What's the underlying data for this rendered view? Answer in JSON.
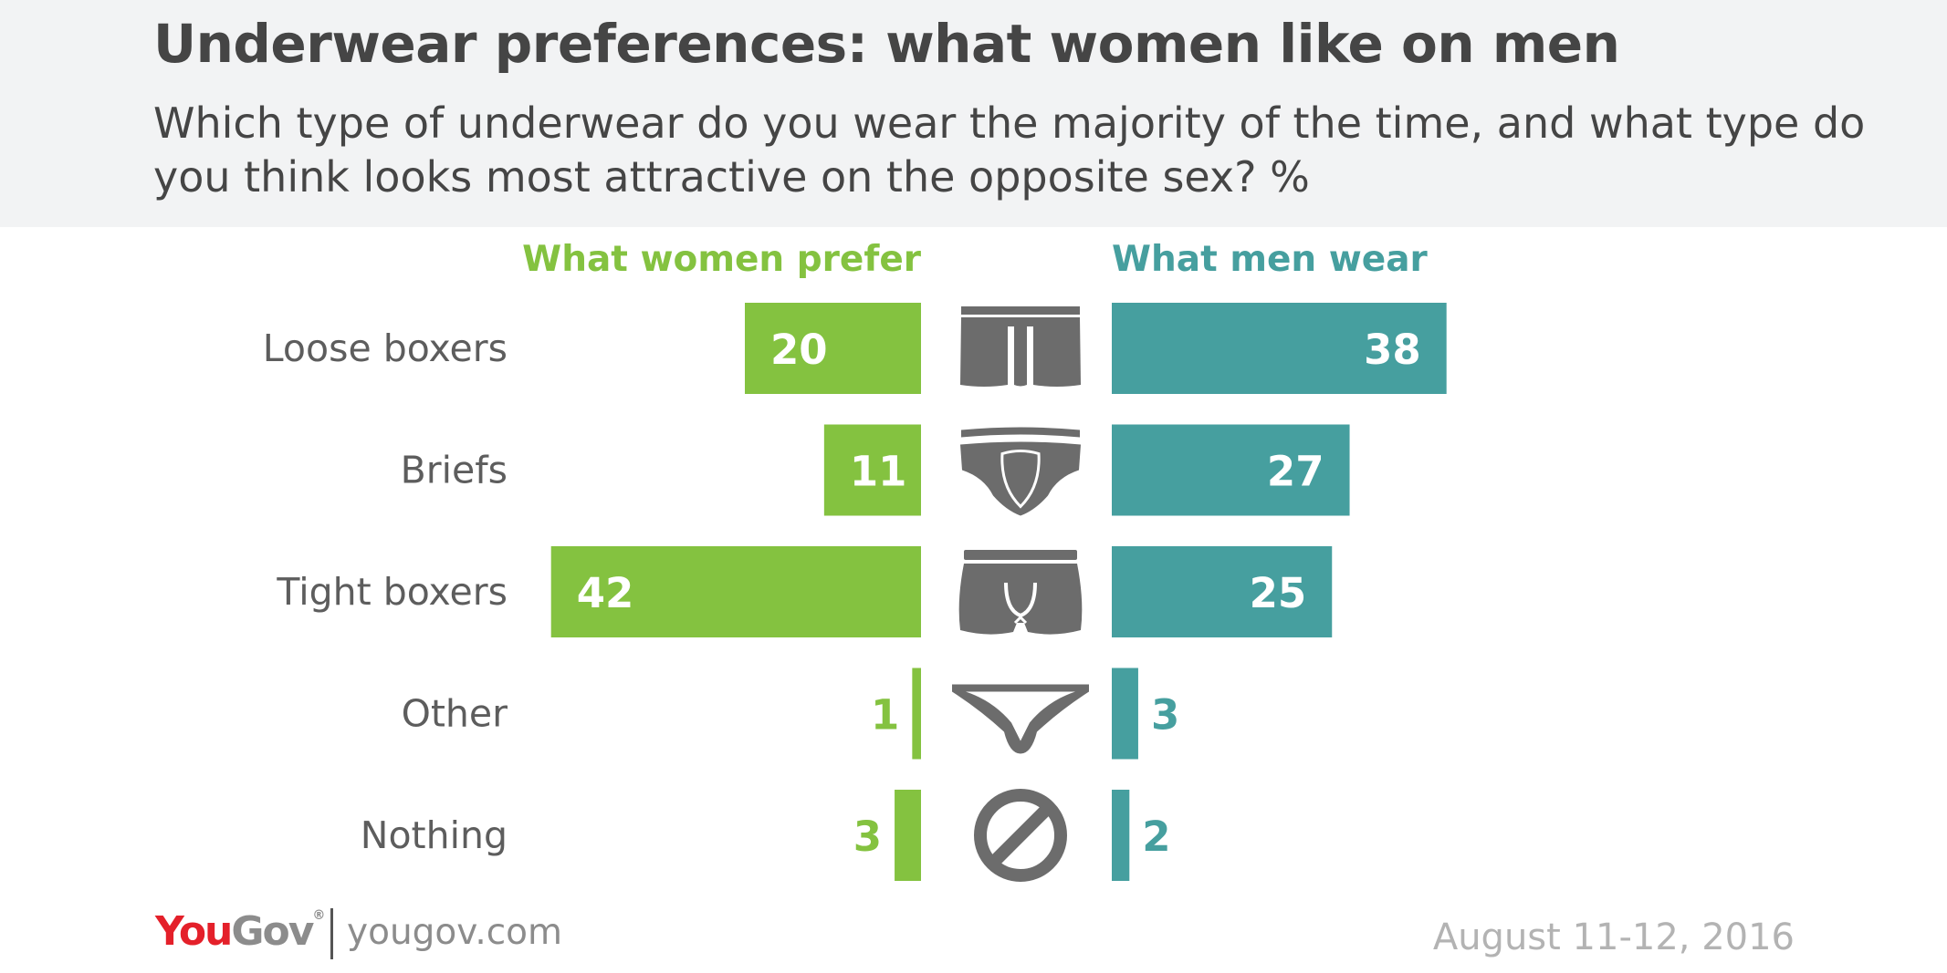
{
  "title": "Underwear preferences: what women like on men",
  "subtitle": "Which type of underwear do you wear the majority of the time, and what type do you think looks most attractive on the opposite sex? %",
  "footer": {
    "logo_you": "You",
    "logo_gov": "Gov",
    "logo_reg": "®",
    "site": "yougov.com",
    "date": "August 11-12, 2016"
  },
  "colors": {
    "women": "#84c240",
    "men": "#469f9f",
    "icon": "#6c6c6c",
    "label": "#5d5d5d"
  },
  "chart_data": {
    "type": "bar",
    "orientation": "horizontal-butterfly",
    "categories": [
      "Loose boxers",
      "Briefs",
      "Tight boxers",
      "Other",
      "Nothing"
    ],
    "icons": [
      "loose-boxers-icon",
      "briefs-icon",
      "tight-boxers-icon",
      "thong-icon",
      "prohibited-icon"
    ],
    "series": [
      {
        "name": "What women prefer",
        "values": [
          20,
          11,
          42,
          1,
          3
        ]
      },
      {
        "name": "What men wear",
        "values": [
          38,
          27,
          25,
          3,
          2
        ]
      }
    ]
  }
}
